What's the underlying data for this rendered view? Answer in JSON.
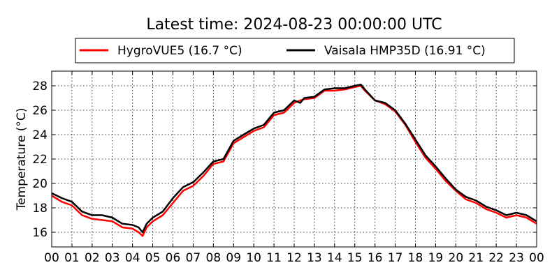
{
  "chart_data": {
    "type": "line",
    "title": "Latest time: 2024-08-23 00:00:00 UTC",
    "xlabel": "",
    "ylabel": "Temperature (°C)",
    "x_ticks": [
      "00",
      "01",
      "02",
      "03",
      "04",
      "05",
      "06",
      "07",
      "08",
      "09",
      "10",
      "11",
      "12",
      "13",
      "14",
      "15",
      "16",
      "17",
      "18",
      "19",
      "20",
      "21",
      "22",
      "23",
      "00"
    ],
    "y_ticks": [
      16,
      18,
      20,
      22,
      24,
      26,
      28
    ],
    "xlim": [
      0,
      24
    ],
    "ylim": [
      14.8,
      29.2
    ],
    "grid": true,
    "legend_position": "top",
    "x_unit": "hour",
    "series": [
      {
        "name": "HygroVUE5 (16.7 °C)",
        "color": "#ff0000",
        "x": [
          0,
          0.5,
          1,
          1.5,
          2,
          2.5,
          3,
          3.5,
          4,
          4.3,
          4.5,
          4.7,
          5,
          5.5,
          6,
          6.5,
          7,
          7.5,
          8,
          8.5,
          9,
          9.5,
          10,
          10.5,
          11,
          11.5,
          12,
          12.3,
          12.5,
          13,
          13.5,
          14,
          14.5,
          15,
          15.3,
          15.5,
          16,
          16.5,
          17,
          17.5,
          18,
          18.5,
          19,
          19.5,
          20,
          20.5,
          21,
          21.5,
          22,
          22.5,
          23,
          23.5,
          24
        ],
        "y": [
          19.0,
          18.5,
          18.2,
          17.4,
          17.1,
          17.0,
          16.9,
          16.4,
          16.3,
          16.0,
          15.7,
          16.4,
          16.9,
          17.4,
          18.4,
          19.4,
          19.8,
          20.6,
          21.6,
          21.8,
          23.3,
          23.8,
          24.3,
          24.6,
          25.6,
          25.8,
          26.6,
          26.8,
          26.9,
          27.0,
          27.6,
          27.6,
          27.7,
          27.9,
          28.0,
          27.6,
          26.8,
          26.5,
          25.9,
          24.8,
          23.4,
          22.1,
          21.2,
          20.2,
          19.4,
          18.7,
          18.4,
          17.9,
          17.6,
          17.2,
          17.4,
          17.2,
          16.7
        ]
      },
      {
        "name": "Vaisala HMP35D (16.91 °C)",
        "color": "#000000",
        "x": [
          0,
          0.5,
          1,
          1.5,
          2,
          2.5,
          3,
          3.5,
          4,
          4.3,
          4.5,
          4.7,
          5,
          5.5,
          6,
          6.5,
          7,
          7.5,
          8,
          8.5,
          9,
          9.5,
          10,
          10.5,
          11,
          11.5,
          12,
          12.3,
          12.5,
          13,
          13.5,
          14,
          14.5,
          15,
          15.3,
          15.5,
          16,
          16.5,
          17,
          17.5,
          18,
          18.5,
          19,
          19.5,
          20,
          20.5,
          21,
          21.5,
          22,
          22.5,
          23,
          23.5,
          24
        ],
        "y": [
          19.2,
          18.8,
          18.5,
          17.7,
          17.4,
          17.4,
          17.2,
          16.7,
          16.6,
          16.4,
          16.0,
          16.7,
          17.2,
          17.7,
          18.8,
          19.7,
          20.1,
          20.9,
          21.8,
          22.0,
          23.5,
          24.0,
          24.5,
          24.8,
          25.8,
          26.0,
          26.8,
          26.6,
          27.0,
          27.1,
          27.7,
          27.8,
          27.8,
          28.0,
          28.1,
          27.7,
          26.8,
          26.6,
          26.0,
          24.9,
          23.6,
          22.3,
          21.4,
          20.4,
          19.5,
          18.9,
          18.6,
          18.1,
          17.8,
          17.4,
          17.6,
          17.4,
          16.9
        ]
      }
    ]
  }
}
